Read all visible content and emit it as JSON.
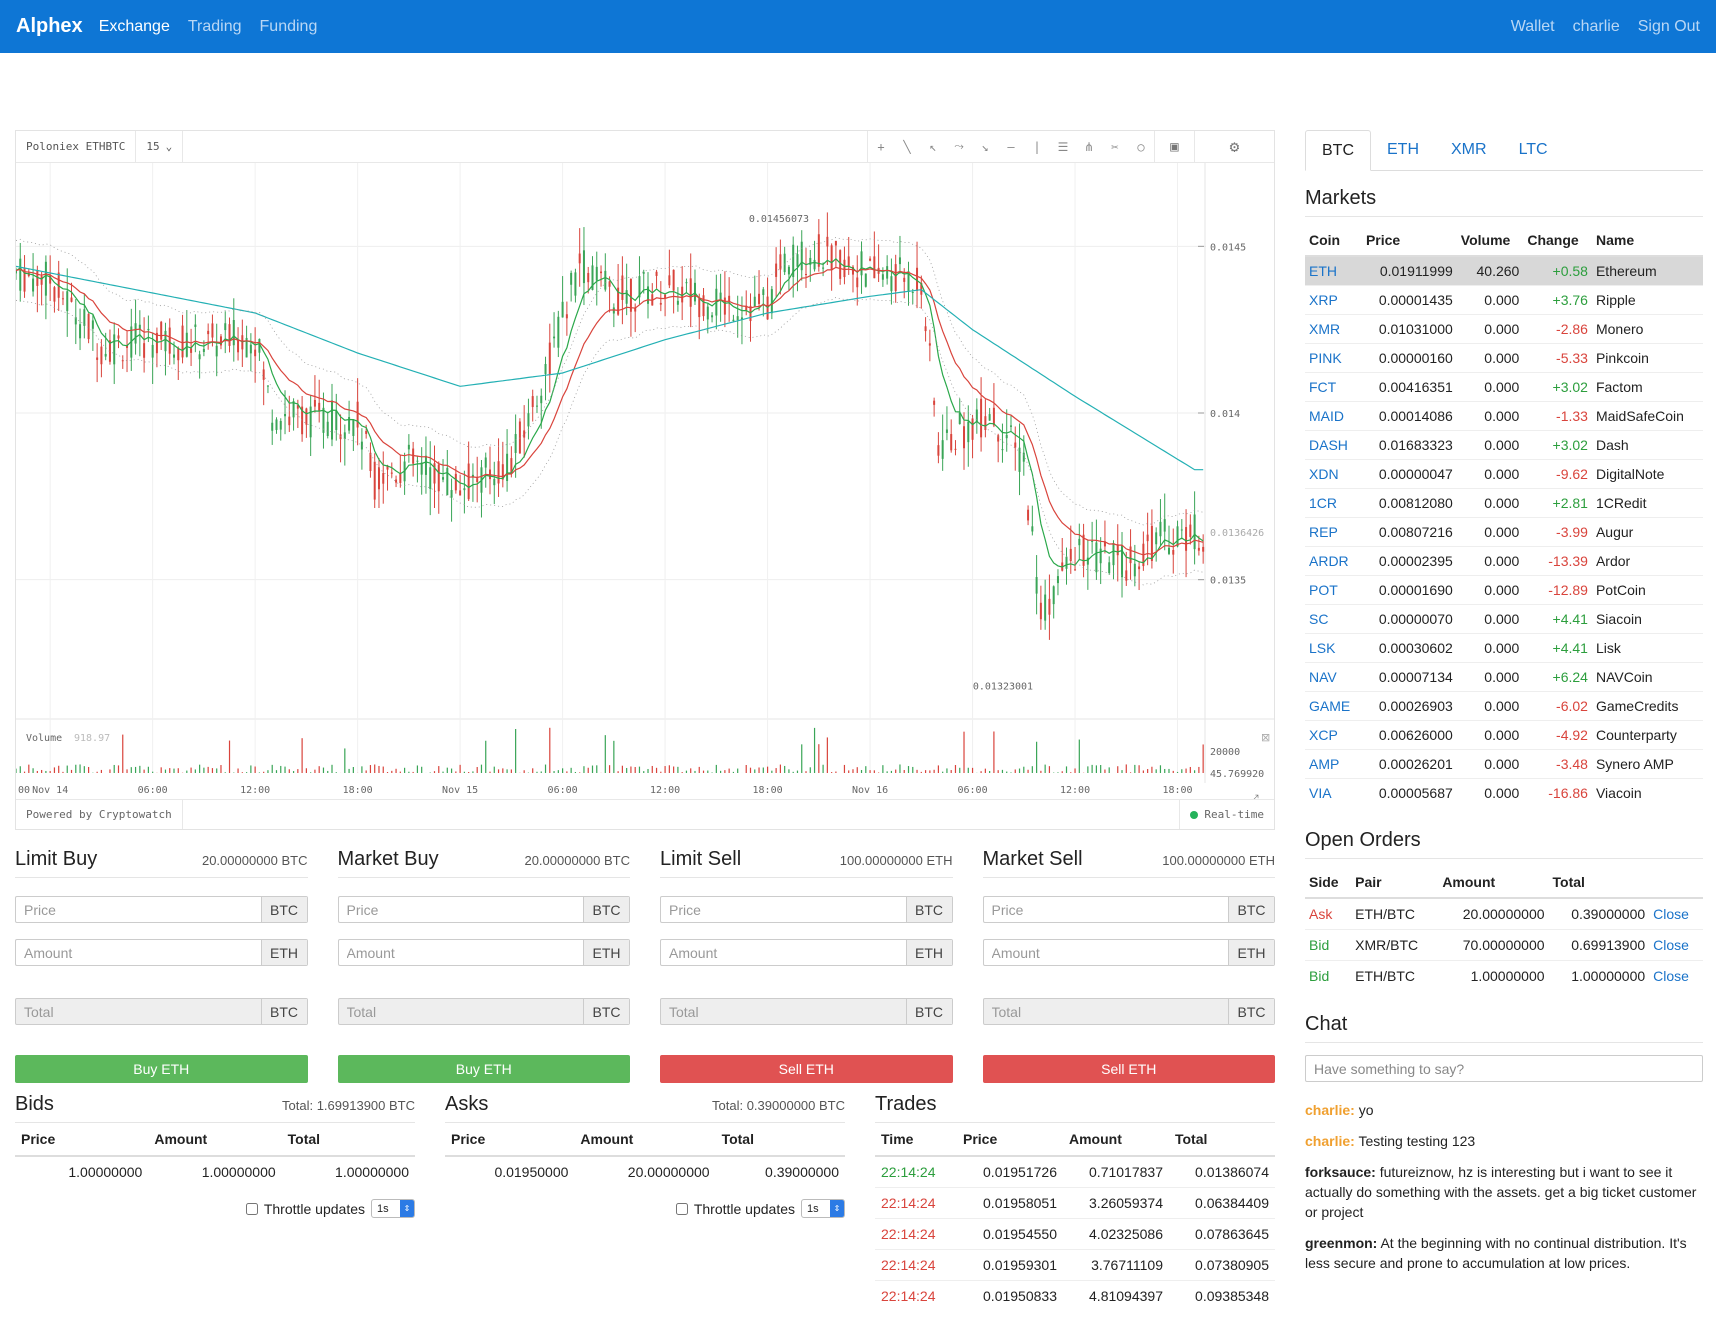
{
  "nav": {
    "brand": "Alphex",
    "left": [
      "Exchange",
      "Trading",
      "Funding"
    ],
    "right": [
      "Wallet",
      "charlie",
      "Sign Out"
    ]
  },
  "chart": {
    "symbol": "Poloniex ETHBTC",
    "interval": "15",
    "price_high_label": "0.01456073",
    "price_low_label": "0.01323001",
    "last_price_label": "0.0136426",
    "y_ticks": [
      "0.0145",
      "0.014",
      "0.0135"
    ],
    "volume_label": "Volume",
    "volume_value": "918.97",
    "volume_ticks": [
      "20000",
      "45.769920"
    ],
    "x_ticks": [
      "00",
      "Nov 14",
      "06:00",
      "12:00",
      "18:00",
      "Nov 15",
      "06:00",
      "12:00",
      "18:00",
      "Nov 16",
      "06:00",
      "12:00",
      "18:00"
    ],
    "powered_by": "Powered by Cryptowatch",
    "realtime": "Real-time"
  },
  "chart_data": {
    "type": "candlestick",
    "title": "Poloniex ETHBTC",
    "ylim": [
      0.0131,
      0.01475
    ],
    "interval_minutes": 15,
    "annotations": {
      "high": 0.01456073,
      "low": 0.01323001,
      "last": 0.0136426
    },
    "price_path": [
      [
        "Nov 13 22:00",
        0.01442
      ],
      [
        "Nov 14 00:00",
        0.0144
      ],
      [
        "Nov 14 03:00",
        0.0142
      ],
      [
        "Nov 14 06:00",
        0.01422
      ],
      [
        "Nov 14 09:00",
        0.01421
      ],
      [
        "Nov 14 12:00",
        0.01423
      ],
      [
        "Nov 14 13:00",
        0.014
      ],
      [
        "Nov 14 16:00",
        0.01398
      ],
      [
        "Nov 14 18:00",
        0.01398
      ],
      [
        "Nov 14 19:00",
        0.0138
      ],
      [
        "Nov 14 21:00",
        0.01385
      ],
      [
        "Nov 15 00:00",
        0.01378
      ],
      [
        "Nov 15 03:00",
        0.01385
      ],
      [
        "Nov 15 05:00",
        0.01412
      ],
      [
        "Nov 15 07:00",
        0.01445
      ],
      [
        "Nov 15 09:00",
        0.01435
      ],
      [
        "Nov 15 12:00",
        0.01438
      ],
      [
        "Nov 15 15:00",
        0.01433
      ],
      [
        "Nov 15 18:00",
        0.01432
      ],
      [
        "Nov 15 19:00",
        0.01446
      ],
      [
        "Nov 15 21:00",
        0.01448
      ],
      [
        "Nov 16 00:00",
        0.01442
      ],
      [
        "Nov 16 03:00",
        0.0144
      ],
      [
        "Nov 16 04:00",
        0.0139
      ],
      [
        "Nov 16 07:00",
        0.014
      ],
      [
        "Nov 16 09:00",
        0.01385
      ],
      [
        "Nov 16 10:00",
        0.0134
      ],
      [
        "Nov 16 12:00",
        0.01358
      ],
      [
        "Nov 16 15:00",
        0.01355
      ],
      [
        "Nov 16 17:00",
        0.01363
      ],
      [
        "Nov 16 19:00",
        0.01364
      ]
    ],
    "moving_average_slow": [
      [
        "Nov 13 22:00",
        0.01444
      ],
      [
        "Nov 14 06:00",
        0.01436
      ],
      [
        "Nov 14 12:00",
        0.0143
      ],
      [
        "Nov 14 18:00",
        0.01418
      ],
      [
        "Nov 15 00:00",
        0.01408
      ],
      [
        "Nov 15 06:00",
        0.01412
      ],
      [
        "Nov 15 12:00",
        0.01422
      ],
      [
        "Nov 15 18:00",
        0.0143
      ],
      [
        "Nov 16 00:00",
        0.01435
      ],
      [
        "Nov 16 03:00",
        0.01437
      ],
      [
        "Nov 16 06:00",
        0.01425
      ],
      [
        "Nov 16 12:00",
        0.01405
      ],
      [
        "Nov 16 19:00",
        0.01383
      ]
    ],
    "volume_ylim": [
      0,
      25000
    ]
  },
  "forms": [
    {
      "title": "Limit Buy",
      "balance": "20.00000000 BTC",
      "price_unit": "BTC",
      "amount_unit": "ETH",
      "total_unit": "BTC",
      "button": "Buy ETH",
      "kind": "buy"
    },
    {
      "title": "Market Buy",
      "balance": "20.00000000 BTC",
      "price_unit": "BTC",
      "amount_unit": "ETH",
      "total_unit": "BTC",
      "button": "Buy ETH",
      "kind": "buy"
    },
    {
      "title": "Limit Sell",
      "balance": "100.00000000 ETH",
      "price_unit": "BTC",
      "amount_unit": "ETH",
      "total_unit": "BTC",
      "button": "Sell ETH",
      "kind": "sell"
    },
    {
      "title": "Market Sell",
      "balance": "100.00000000 ETH",
      "price_unit": "BTC",
      "amount_unit": "ETH",
      "total_unit": "BTC",
      "button": "Sell ETH",
      "kind": "sell"
    }
  ],
  "placeholders": {
    "price": "Price",
    "amount": "Amount",
    "total": "Total"
  },
  "bids": {
    "title": "Bids",
    "total": "Total: 1.69913900 BTC",
    "columns": [
      "Price",
      "Amount",
      "Total"
    ],
    "rows": [
      [
        "1.00000000",
        "1.00000000",
        "1.00000000"
      ]
    ],
    "throttle": "Throttle updates",
    "throttle_value": "1s"
  },
  "asks": {
    "title": "Asks",
    "total": "Total: 0.39000000 BTC",
    "columns": [
      "Price",
      "Amount",
      "Total"
    ],
    "rows": [
      [
        "0.01950000",
        "20.00000000",
        "0.39000000"
      ]
    ],
    "throttle": "Throttle updates",
    "throttle_value": "1s"
  },
  "trades": {
    "title": "Trades",
    "columns": [
      "Time",
      "Price",
      "Amount",
      "Total"
    ],
    "rows": [
      {
        "time": "22:14:24",
        "price": "0.01951726",
        "amount": "0.71017837",
        "total": "0.01386074",
        "side": "buy"
      },
      {
        "time": "22:14:24",
        "price": "0.01958051",
        "amount": "3.26059374",
        "total": "0.06384409",
        "side": "sell"
      },
      {
        "time": "22:14:24",
        "price": "0.01954550",
        "amount": "4.02325086",
        "total": "0.07863645",
        "side": "sell"
      },
      {
        "time": "22:14:24",
        "price": "0.01959301",
        "amount": "3.76711109",
        "total": "0.07380905",
        "side": "sell"
      },
      {
        "time": "22:14:24",
        "price": "0.01950833",
        "amount": "4.81094397",
        "total": "0.09385348",
        "side": "sell"
      }
    ]
  },
  "sidebar": {
    "tabs": [
      "BTC",
      "ETH",
      "XMR",
      "LTC"
    ],
    "markets_title": "Markets",
    "markets_columns": [
      "Coin",
      "Price",
      "Volume",
      "Change",
      "Name"
    ],
    "markets": [
      {
        "coin": "ETH",
        "price": "0.01911999",
        "volume": "40.260",
        "change": "+0.58",
        "name": "Ethereum"
      },
      {
        "coin": "XRP",
        "price": "0.00001435",
        "volume": "0.000",
        "change": "+3.76",
        "name": "Ripple"
      },
      {
        "coin": "XMR",
        "price": "0.01031000",
        "volume": "0.000",
        "change": "-2.86",
        "name": "Monero"
      },
      {
        "coin": "PINK",
        "price": "0.00000160",
        "volume": "0.000",
        "change": "-5.33",
        "name": "Pinkcoin"
      },
      {
        "coin": "FCT",
        "price": "0.00416351",
        "volume": "0.000",
        "change": "+3.02",
        "name": "Factom"
      },
      {
        "coin": "MAID",
        "price": "0.00014086",
        "volume": "0.000",
        "change": "-1.33",
        "name": "MaidSafeCoin"
      },
      {
        "coin": "DASH",
        "price": "0.01683323",
        "volume": "0.000",
        "change": "+3.02",
        "name": "Dash"
      },
      {
        "coin": "XDN",
        "price": "0.00000047",
        "volume": "0.000",
        "change": "-9.62",
        "name": "DigitalNote"
      },
      {
        "coin": "1CR",
        "price": "0.00812080",
        "volume": "0.000",
        "change": "+2.81",
        "name": "1CRedit"
      },
      {
        "coin": "REP",
        "price": "0.00807216",
        "volume": "0.000",
        "change": "-3.99",
        "name": "Augur"
      },
      {
        "coin": "ARDR",
        "price": "0.00002395",
        "volume": "0.000",
        "change": "-13.39",
        "name": "Ardor"
      },
      {
        "coin": "POT",
        "price": "0.00001690",
        "volume": "0.000",
        "change": "-12.89",
        "name": "PotCoin"
      },
      {
        "coin": "SC",
        "price": "0.00000070",
        "volume": "0.000",
        "change": "+4.41",
        "name": "Siacoin"
      },
      {
        "coin": "LSK",
        "price": "0.00030602",
        "volume": "0.000",
        "change": "+4.41",
        "name": "Lisk"
      },
      {
        "coin": "NAV",
        "price": "0.00007134",
        "volume": "0.000",
        "change": "+6.24",
        "name": "NAVCoin"
      },
      {
        "coin": "GAME",
        "price": "0.00026903",
        "volume": "0.000",
        "change": "-6.02",
        "name": "GameCredits"
      },
      {
        "coin": "XCP",
        "price": "0.00626000",
        "volume": "0.000",
        "change": "-4.92",
        "name": "Counterparty"
      },
      {
        "coin": "AMP",
        "price": "0.00026201",
        "volume": "0.000",
        "change": "-3.48",
        "name": "Synero AMP"
      },
      {
        "coin": "VIA",
        "price": "0.00005687",
        "volume": "0.000",
        "change": "-16.86",
        "name": "Viacoin"
      }
    ],
    "orders_title": "Open Orders",
    "orders_columns": [
      "Side",
      "Pair",
      "Amount",
      "Total"
    ],
    "orders": [
      {
        "side": "Ask",
        "pair": "ETH/BTC",
        "amount": "20.00000000",
        "total": "0.39000000",
        "action": "Close"
      },
      {
        "side": "Bid",
        "pair": "XMR/BTC",
        "amount": "70.00000000",
        "total": "0.69913900",
        "action": "Close"
      },
      {
        "side": "Bid",
        "pair": "ETH/BTC",
        "amount": "1.00000000",
        "total": "1.00000000",
        "action": "Close"
      }
    ],
    "chat_title": "Chat",
    "chat_placeholder": "Have something to say?",
    "chat": [
      {
        "user": "charlie:",
        "text": " yo",
        "self": true
      },
      {
        "user": "charlie:",
        "text": " Testing testing 123",
        "self": true
      },
      {
        "user": "forksauce:",
        "text": " futureiznow, hz is interesting but i want to see it actually do something with the assets. get a big ticket customer or project",
        "self": false
      },
      {
        "user": "greenmon:",
        "text": " At the beginning with no continual distribution. It's less secure and prone to accumulation at low prices.",
        "self": false
      }
    ]
  }
}
